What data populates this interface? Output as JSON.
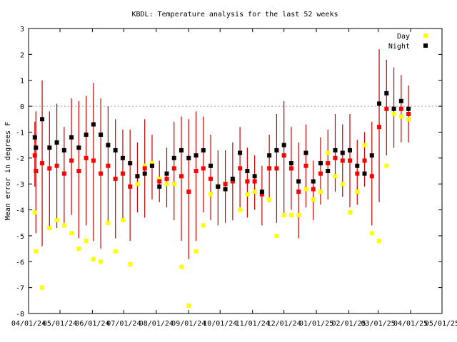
{
  "chart_data": {
    "type": "scatter",
    "title": "KBDL: Temperature analysis for the last 52 weeks",
    "ylabel": "Mean error in degrees F",
    "xlabel": "",
    "ylim": [
      -8,
      3
    ],
    "yticks": [
      3,
      2,
      1,
      0,
      -1,
      -2,
      -3,
      -4,
      -5,
      -6,
      -7,
      -8
    ],
    "xlim": [
      "2024-04-01",
      "2025-05-01"
    ],
    "xticks": [
      {
        "date": "2024-04-01",
        "label": "04/01/24"
      },
      {
        "date": "2024-05-01",
        "label": "05/01/24"
      },
      {
        "date": "2024-06-01",
        "label": "06/01/24"
      },
      {
        "date": "2024-07-01",
        "label": "07/01/24"
      },
      {
        "date": "2024-08-01",
        "label": "08/01/24"
      },
      {
        "date": "2024-09-01",
        "label": "09/01/24"
      },
      {
        "date": "2024-10-01",
        "label": "10/01/24"
      },
      {
        "date": "2024-11-01",
        "label": "11/01/24"
      },
      {
        "date": "2024-12-01",
        "label": "12/01/24"
      },
      {
        "date": "2025-01-01",
        "label": "01/01/25"
      },
      {
        "date": "2025-02-01",
        "label": "02/01/25"
      },
      {
        "date": "2025-03-01",
        "label": "03/01/25"
      },
      {
        "date": "2025-04-01",
        "label": "04/01/25"
      },
      {
        "date": "2025-05-01",
        "label": "05/01/25"
      }
    ],
    "zero_line": 0,
    "grid": false,
    "legend": {
      "position": "top-right",
      "entries": [
        {
          "name": "Day",
          "color": "#ffff00"
        },
        {
          "name": "Night",
          "color": "#000000"
        }
      ]
    },
    "colors": {
      "mean": "#ff0000",
      "errorbar": "#cc0000",
      "day": "#ffff00",
      "night": "#000000",
      "zero_line": "#a0a0a0"
    },
    "weeks": [
      {
        "date": "2024-04-07",
        "mean": -1.9,
        "low": -3.1,
        "high": -0.6,
        "day": -4.1,
        "night": -1.2
      },
      {
        "date": "2024-04-08",
        "mean": -2.5,
        "low": -4.9,
        "high": -0.2,
        "day": -5.6,
        "night": -1.6
      },
      {
        "date": "2024-04-14",
        "mean": -2.2,
        "low": -5.4,
        "high": 1.0,
        "day": -7.0,
        "night": -0.5
      },
      {
        "date": "2024-04-21",
        "mean": -2.4,
        "low": -4.7,
        "high": -0.2,
        "day": -4.7,
        "night": -1.6
      },
      {
        "date": "2024-04-28",
        "mean": -2.3,
        "low": -4.7,
        "high": 0.1,
        "day": -4.4,
        "night": -1.4
      },
      {
        "date": "2024-05-05",
        "mean": -2.6,
        "low": -4.5,
        "high": -0.8,
        "day": -4.6,
        "night": -1.7
      },
      {
        "date": "2024-05-12",
        "mean": -2.1,
        "low": -4.2,
        "high": 0.3,
        "day": -4.9,
        "night": -1.2
      },
      {
        "date": "2024-05-19",
        "mean": -2.5,
        "low": -5.1,
        "high": 0.2,
        "day": -5.5,
        "night": -1.6
      },
      {
        "date": "2024-05-26",
        "mean": -2.0,
        "low": -4.6,
        "high": 0.4,
        "day": -5.2,
        "night": -1.1
      },
      {
        "date": "2024-06-02",
        "mean": -2.1,
        "low": -5.2,
        "high": 0.9,
        "day": -5.9,
        "night": -0.7
      },
      {
        "date": "2024-06-09",
        "mean": -2.6,
        "low": -5.5,
        "high": 0.3,
        "day": -6.0,
        "night": -1.1
      },
      {
        "date": "2024-06-16",
        "mean": -2.3,
        "low": -4.5,
        "high": 0.0,
        "day": -4.5,
        "night": -1.5
      },
      {
        "date": "2024-06-23",
        "mean": -2.8,
        "low": -5.1,
        "high": -0.5,
        "day": -5.6,
        "night": -1.7
      },
      {
        "date": "2024-06-30",
        "mean": -2.6,
        "low": -4.4,
        "high": -0.9,
        "day": -4.4,
        "night": -2.0
      },
      {
        "date": "2024-07-07",
        "mean": -3.1,
        "low": -5.2,
        "high": -0.9,
        "day": -6.1,
        "night": -2.2
      },
      {
        "date": "2024-07-14",
        "mean": -2.7,
        "low": -4.1,
        "high": -1.4,
        "day": -3.0,
        "night": -2.7
      },
      {
        "date": "2024-07-21",
        "mean": -2.4,
        "low": -4.3,
        "high": -0.5,
        "day": -2.3,
        "night": -2.6
      },
      {
        "date": "2024-07-28",
        "mean": -2.3,
        "low": -3.6,
        "high": -1.1,
        "day": -2.2,
        "night": -2.3
      },
      {
        "date": "2024-08-04",
        "mean": -2.9,
        "low": -3.7,
        "high": -2.1,
        "day": -2.8,
        "night": -3.1
      },
      {
        "date": "2024-08-11",
        "mean": -2.8,
        "low": -3.9,
        "high": -1.6,
        "day": -3.0,
        "night": -2.6
      },
      {
        "date": "2024-08-18",
        "mean": -2.4,
        "low": -4.4,
        "high": -0.6,
        "day": -3.0,
        "night": -2.0
      },
      {
        "date": "2024-08-25",
        "mean": -2.7,
        "low": -5.2,
        "high": -0.4,
        "day": -6.2,
        "night": -1.7
      },
      {
        "date": "2024-09-01",
        "mean": -3.3,
        "low": -5.9,
        "high": -0.5,
        "day": -7.7,
        "night": -2.0
      },
      {
        "date": "2024-09-08",
        "mean": -2.5,
        "low": -5.2,
        "high": -0.2,
        "day": -5.6,
        "night": -1.9
      },
      {
        "date": "2024-09-15",
        "mean": -2.4,
        "low": -4.1,
        "high": -0.4,
        "day": -4.6,
        "night": -1.7
      },
      {
        "date": "2024-09-22",
        "mean": -2.8,
        "low": -4.4,
        "high": -1.1,
        "day": -3.4,
        "night": -2.3
      },
      {
        "date": "2024-09-29",
        "mean": -3.1,
        "low": -4.6,
        "high": -1.7,
        "day": -3.1,
        "night": -3.1
      },
      {
        "date": "2024-10-06",
        "mean": -3.0,
        "low": -4.5,
        "high": -1.7,
        "day": -3.0,
        "night": -3.2
      },
      {
        "date": "2024-10-13",
        "mean": -2.9,
        "low": -4.4,
        "high": -1.4,
        "day": -2.9,
        "night": -2.8
      },
      {
        "date": "2024-10-20",
        "mean": -2.4,
        "low": -3.9,
        "high": -0.8,
        "day": -4.0,
        "night": -1.8
      },
      {
        "date": "2024-10-27",
        "mean": -2.9,
        "low": -4.3,
        "high": -1.6,
        "day": -3.4,
        "night": -2.5
      },
      {
        "date": "2024-11-03",
        "mean": -2.9,
        "low": -4.0,
        "high": -1.9,
        "day": -3.3,
        "night": -2.7
      },
      {
        "date": "2024-11-10",
        "mean": -3.4,
        "low": -4.6,
        "high": -2.3,
        "day": -3.4,
        "night": -3.3
      },
      {
        "date": "2024-11-17",
        "mean": -2.4,
        "low": -3.7,
        "high": -1.1,
        "day": -3.6,
        "night": -1.9
      },
      {
        "date": "2024-11-24",
        "mean": -2.4,
        "low": -4.5,
        "high": -0.3,
        "day": -5.0,
        "night": -1.7
      },
      {
        "date": "2024-12-01",
        "mean": -1.9,
        "low": -4.2,
        "high": 0.2,
        "day": -4.2,
        "night": -1.5
      },
      {
        "date": "2024-12-08",
        "mean": -2.4,
        "low": -4.0,
        "high": -0.8,
        "day": -4.2,
        "night": -2.2
      },
      {
        "date": "2024-12-15",
        "mean": -3.3,
        "low": -5.1,
        "high": -1.4,
        "day": -4.2,
        "night": -2.9
      },
      {
        "date": "2024-12-22",
        "mean": -2.3,
        "low": -3.9,
        "high": -0.7,
        "day": -3.2,
        "night": -1.8
      },
      {
        "date": "2024-12-29",
        "mean": -3.2,
        "low": -4.4,
        "high": -2.1,
        "day": -3.6,
        "night": -2.9
      },
      {
        "date": "2025-01-05",
        "mean": -2.6,
        "low": -3.8,
        "high": -1.2,
        "day": -3.3,
        "night": -2.2
      },
      {
        "date": "2025-01-12",
        "mean": -2.2,
        "low": -3.6,
        "high": -0.9,
        "day": -1.8,
        "night": -2.5
      },
      {
        "date": "2025-01-19",
        "mean": -2.0,
        "low": -3.3,
        "high": -0.3,
        "day": -2.7,
        "night": -1.7
      },
      {
        "date": "2025-01-26",
        "mean": -2.1,
        "low": -3.5,
        "high": -0.7,
        "day": -3.0,
        "night": -1.8
      },
      {
        "date": "2025-02-02",
        "mean": -2.1,
        "low": -3.9,
        "high": -0.3,
        "day": -4.1,
        "night": -1.7
      },
      {
        "date": "2025-02-09",
        "mean": -2.6,
        "low": -3.8,
        "high": -1.3,
        "day": -3.3,
        "night": -2.3
      },
      {
        "date": "2025-02-16",
        "mean": -2.1,
        "low": -3.1,
        "high": -1.0,
        "day": -1.5,
        "night": -2.6
      },
      {
        "date": "2025-02-23",
        "mean": -2.7,
        "low": -4.6,
        "high": -0.6,
        "day": -4.9,
        "night": -1.9
      },
      {
        "date": "2025-03-02",
        "mean": -0.8,
        "low": -3.7,
        "high": 2.2,
        "day": -5.2,
        "night": 0.1
      },
      {
        "date": "2025-03-09",
        "mean": -0.1,
        "low": -1.9,
        "high": 1.8,
        "day": -2.3,
        "night": 0.5
      },
      {
        "date": "2025-03-16",
        "mean": -0.1,
        "low": -1.6,
        "high": 1.5,
        "day": -0.3,
        "night": -0.1
      },
      {
        "date": "2025-03-23",
        "mean": -0.1,
        "low": -1.4,
        "high": 1.2,
        "day": -0.4,
        "night": 0.2
      },
      {
        "date": "2025-03-30",
        "mean": -0.3,
        "low": -1.4,
        "high": 0.8,
        "day": -0.5,
        "night": -0.1
      }
    ]
  }
}
